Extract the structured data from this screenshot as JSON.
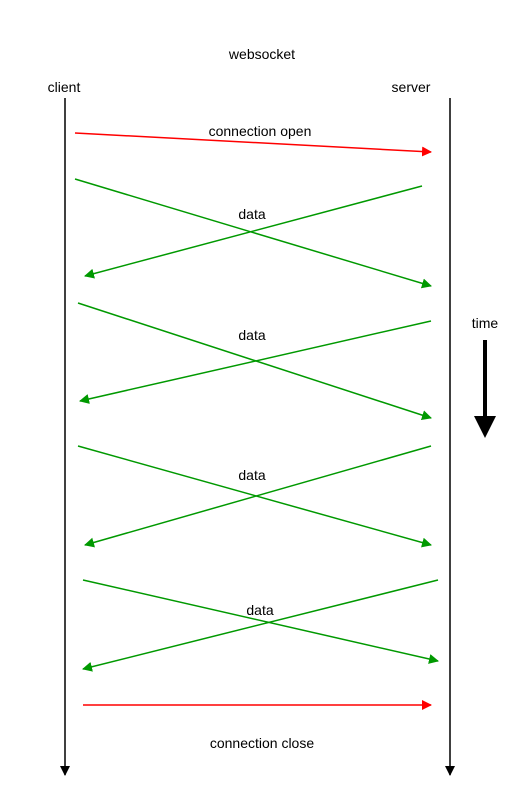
{
  "title": "websocket",
  "participants": {
    "client": "client",
    "server": "server"
  },
  "time_label": "time",
  "messages": {
    "open": "connection open",
    "data": [
      "data",
      "data",
      "data",
      "data"
    ],
    "close": "connection close"
  },
  "colors": {
    "control": "#ff0000",
    "data": "#009900",
    "lifeline": "#000000"
  }
}
